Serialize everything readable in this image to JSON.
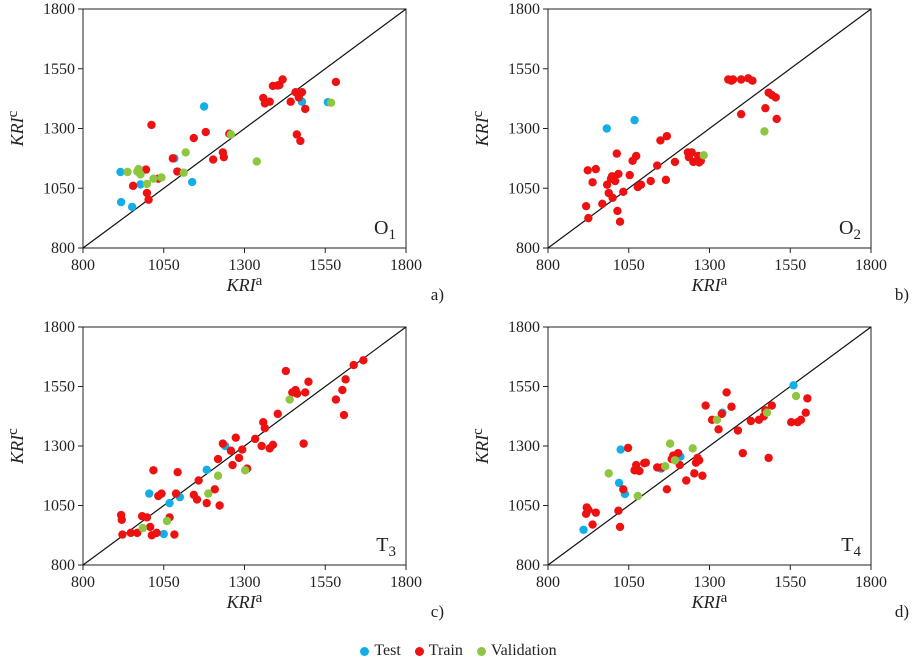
{
  "colors": {
    "test": "#12aee8",
    "train": "#ee1111",
    "validation": "#8ec641"
  },
  "legend": {
    "test": "Test",
    "train": "Train",
    "validation": "Validation"
  },
  "chart_data": [
    {
      "type": "scatter",
      "panel": "a)",
      "label": "O",
      "sub": "1",
      "xlabel": "KRI",
      "xsup": "a",
      "ylabel": "KRI",
      "ysup": "c",
      "xlim": [
        800,
        1800
      ],
      "ylim": [
        800,
        1800
      ],
      "ticks": [
        800,
        1050,
        1300,
        1550,
        1800
      ],
      "series": [
        {
          "name": "Test",
          "points": [
            [
              916,
              1118
            ],
            [
              918,
              992
            ],
            [
              952,
              972
            ],
            [
              978,
              1066
            ],
            [
              1083,
              1175
            ],
            [
              1138,
              1076
            ],
            [
              1175,
              1392
            ],
            [
              1478,
              1412
            ],
            [
              1558,
              1410
            ]
          ]
        },
        {
          "name": "Train",
          "points": [
            [
              955,
              1060
            ],
            [
              995,
              1128
            ],
            [
              998,
              1030
            ],
            [
              1003,
              1002
            ],
            [
              1012,
              1315
            ],
            [
              1033,
              1090
            ],
            [
              1078,
              1175
            ],
            [
              1092,
              1120
            ],
            [
              1143,
              1260
            ],
            [
              1180,
              1285
            ],
            [
              1203,
              1170
            ],
            [
              1233,
              1200
            ],
            [
              1236,
              1180
            ],
            [
              1253,
              1278
            ],
            [
              1358,
              1428
            ],
            [
              1363,
              1405
            ],
            [
              1378,
              1412
            ],
            [
              1388,
              1478
            ],
            [
              1403,
              1480
            ],
            [
              1408,
              1482
            ],
            [
              1418,
              1505
            ],
            [
              1443,
              1412
            ],
            [
              1458,
              1452
            ],
            [
              1462,
              1275
            ],
            [
              1468,
              1430
            ],
            [
              1473,
              1248
            ],
            [
              1478,
              1452
            ],
            [
              1488,
              1382
            ],
            [
              1583,
              1495
            ]
          ]
        },
        {
          "name": "Validation",
          "points": [
            [
              938,
              1118
            ],
            [
              968,
              1120
            ],
            [
              972,
              1130
            ],
            [
              978,
              1108
            ],
            [
              998,
              1068
            ],
            [
              1018,
              1090
            ],
            [
              1043,
              1095
            ],
            [
              1112,
              1115
            ],
            [
              1118,
              1200
            ],
            [
              1258,
              1275
            ],
            [
              1338,
              1162
            ],
            [
              1568,
              1408
            ]
          ]
        }
      ]
    },
    {
      "type": "scatter",
      "panel": "b)",
      "label": "O",
      "sub": "2",
      "xlabel": "KRI",
      "xsup": "a",
      "ylabel": "KRI",
      "ysup": "c",
      "xlim": [
        800,
        1800
      ],
      "ylim": [
        800,
        1800
      ],
      "ticks": [
        800,
        1050,
        1300,
        1550,
        1800
      ],
      "series": [
        {
          "name": "Test",
          "points": [
            [
              982,
              1300
            ],
            [
              1068,
              1335
            ]
          ]
        },
        {
          "name": "Train",
          "points": [
            [
              918,
              975
            ],
            [
              923,
              1125
            ],
            [
              925,
              925
            ],
            [
              938,
              1075
            ],
            [
              948,
              1130
            ],
            [
              968,
              985
            ],
            [
              983,
              1065
            ],
            [
              988,
              1030
            ],
            [
              995,
              1090
            ],
            [
              998,
              1100
            ],
            [
              1000,
              1010
            ],
            [
              1008,
              1080
            ],
            [
              1013,
              1195
            ],
            [
              1015,
              955
            ],
            [
              1018,
              1110
            ],
            [
              1023,
              910
            ],
            [
              1033,
              1035
            ],
            [
              1053,
              1105
            ],
            [
              1062,
              1165
            ],
            [
              1073,
              1185
            ],
            [
              1078,
              1055
            ],
            [
              1088,
              1065
            ],
            [
              1118,
              1080
            ],
            [
              1138,
              1145
            ],
            [
              1148,
              1250
            ],
            [
              1165,
              1085
            ],
            [
              1168,
              1268
            ],
            [
              1193,
              1160
            ],
            [
              1233,
              1200
            ],
            [
              1236,
              1180
            ],
            [
              1245,
              1200
            ],
            [
              1250,
              1160
            ],
            [
              1265,
              1185
            ],
            [
              1268,
              1158
            ],
            [
              1273,
              1165
            ],
            [
              1358,
              1505
            ],
            [
              1368,
              1500
            ],
            [
              1373,
              1505
            ],
            [
              1398,
              1360
            ],
            [
              1398,
              1505
            ],
            [
              1420,
              1510
            ],
            [
              1433,
              1500
            ],
            [
              1473,
              1385
            ],
            [
              1483,
              1450
            ],
            [
              1493,
              1440
            ],
            [
              1505,
              1430
            ],
            [
              1508,
              1340
            ]
          ]
        },
        {
          "name": "Validation",
          "points": [
            [
              1282,
              1188
            ],
            [
              1470,
              1288
            ]
          ]
        }
      ]
    },
    {
      "type": "scatter",
      "panel": "c)",
      "label": "T",
      "sub": "3",
      "xlabel": "KRI",
      "xsup": "a",
      "ylabel": "KRI",
      "ysup": "c",
      "xlim": [
        800,
        1800
      ],
      "ylim": [
        800,
        1800
      ],
      "ticks": [
        800,
        1050,
        1300,
        1550,
        1800
      ],
      "series": [
        {
          "name": "Test",
          "points": [
            [
              1005,
              1100
            ],
            [
              1050,
              930
            ],
            [
              1068,
              1060
            ],
            [
              1100,
              1085
            ],
            [
              1183,
              1200
            ],
            [
              1240,
              1300
            ]
          ]
        },
        {
          "name": "Train",
          "points": [
            [
              918,
              1010
            ],
            [
              920,
              990
            ],
            [
              922,
              928
            ],
            [
              948,
              935
            ],
            [
              968,
              935
            ],
            [
              983,
              1005
            ],
            [
              998,
              1000
            ],
            [
              1008,
              960
            ],
            [
              1013,
              925
            ],
            [
              1018,
              1198
            ],
            [
              1028,
              935
            ],
            [
              1033,
              1090
            ],
            [
              1043,
              1100
            ],
            [
              1068,
              1000
            ],
            [
              1083,
              928
            ],
            [
              1088,
              1100
            ],
            [
              1093,
              1190
            ],
            [
              1143,
              1095
            ],
            [
              1153,
              1075
            ],
            [
              1158,
              1155
            ],
            [
              1183,
              1060
            ],
            [
              1208,
              1118
            ],
            [
              1218,
              1245
            ],
            [
              1223,
              1050
            ],
            [
              1233,
              1310
            ],
            [
              1258,
              1280
            ],
            [
              1263,
              1220
            ],
            [
              1273,
              1335
            ],
            [
              1283,
              1250
            ],
            [
              1293,
              1285
            ],
            [
              1308,
              1205
            ],
            [
              1333,
              1330
            ],
            [
              1353,
              1300
            ],
            [
              1358,
              1400
            ],
            [
              1363,
              1375
            ],
            [
              1378,
              1290
            ],
            [
              1388,
              1305
            ],
            [
              1403,
              1435
            ],
            [
              1428,
              1615
            ],
            [
              1448,
              1525
            ],
            [
              1458,
              1535
            ],
            [
              1463,
              1520
            ],
            [
              1483,
              1310
            ],
            [
              1488,
              1525
            ],
            [
              1498,
              1570
            ],
            [
              1583,
              1495
            ],
            [
              1603,
              1535
            ],
            [
              1608,
              1430
            ],
            [
              1613,
              1580
            ],
            [
              1638,
              1640
            ],
            [
              1668,
              1660
            ]
          ]
        },
        {
          "name": "Validation",
          "points": [
            [
              985,
              955
            ],
            [
              1060,
              985
            ],
            [
              1188,
              1100
            ],
            [
              1218,
              1175
            ],
            [
              1302,
              1198
            ],
            [
              1440,
              1495
            ]
          ]
        }
      ]
    },
    {
      "type": "scatter",
      "panel": "d)",
      "label": "T",
      "sub": "4",
      "xlabel": "KRI",
      "xsup": "a",
      "ylabel": "KRI",
      "ysup": "c",
      "xlim": [
        800,
        1800
      ],
      "ylim": [
        800,
        1800
      ],
      "ticks": [
        800,
        1050,
        1300,
        1550,
        1800
      ],
      "series": [
        {
          "name": "Test",
          "points": [
            [
              910,
              948
            ],
            [
              1020,
              1145
            ],
            [
              1025,
              1285
            ],
            [
              1038,
              1098
            ],
            [
              1150,
              1205
            ],
            [
              1210,
              1255
            ],
            [
              1340,
              1440
            ],
            [
              1560,
              1555
            ]
          ]
        },
        {
          "name": "Train",
          "points": [
            [
              918,
              1015
            ],
            [
              920,
              1042
            ],
            [
              925,
              1032
            ],
            [
              938,
              970
            ],
            [
              948,
              1020
            ],
            [
              1018,
              1028
            ],
            [
              1023,
              960
            ],
            [
              1033,
              1118
            ],
            [
              1048,
              1292
            ],
            [
              1068,
              1198
            ],
            [
              1073,
              1220
            ],
            [
              1083,
              1195
            ],
            [
              1098,
              1228
            ],
            [
              1103,
              1230
            ],
            [
              1138,
              1210
            ],
            [
              1153,
              1210
            ],
            [
              1168,
              1118
            ],
            [
              1183,
              1245
            ],
            [
              1188,
              1260
            ],
            [
              1203,
              1270
            ],
            [
              1208,
              1220
            ],
            [
              1228,
              1155
            ],
            [
              1253,
              1185
            ],
            [
              1258,
              1230
            ],
            [
              1263,
              1250
            ],
            [
              1268,
              1240
            ],
            [
              1278,
              1175
            ],
            [
              1288,
              1470
            ],
            [
              1308,
              1410
            ],
            [
              1328,
              1370
            ],
            [
              1338,
              1435
            ],
            [
              1353,
              1525
            ],
            [
              1368,
              1465
            ],
            [
              1388,
              1365
            ],
            [
              1403,
              1270
            ],
            [
              1428,
              1405
            ],
            [
              1453,
              1410
            ],
            [
              1468,
              1425
            ],
            [
              1473,
              1450
            ],
            [
              1483,
              1250
            ],
            [
              1493,
              1470
            ],
            [
              1553,
              1400
            ],
            [
              1573,
              1400
            ],
            [
              1583,
              1410
            ],
            [
              1598,
              1440
            ],
            [
              1603,
              1500
            ]
          ]
        },
        {
          "name": "Validation",
          "points": [
            [
              988,
              1185
            ],
            [
              1078,
              1090
            ],
            [
              1163,
              1215
            ],
            [
              1178,
              1310
            ],
            [
              1193,
              1240
            ],
            [
              1248,
              1290
            ],
            [
              1323,
              1410
            ],
            [
              1478,
              1440
            ],
            [
              1568,
              1510
            ]
          ]
        }
      ]
    }
  ]
}
